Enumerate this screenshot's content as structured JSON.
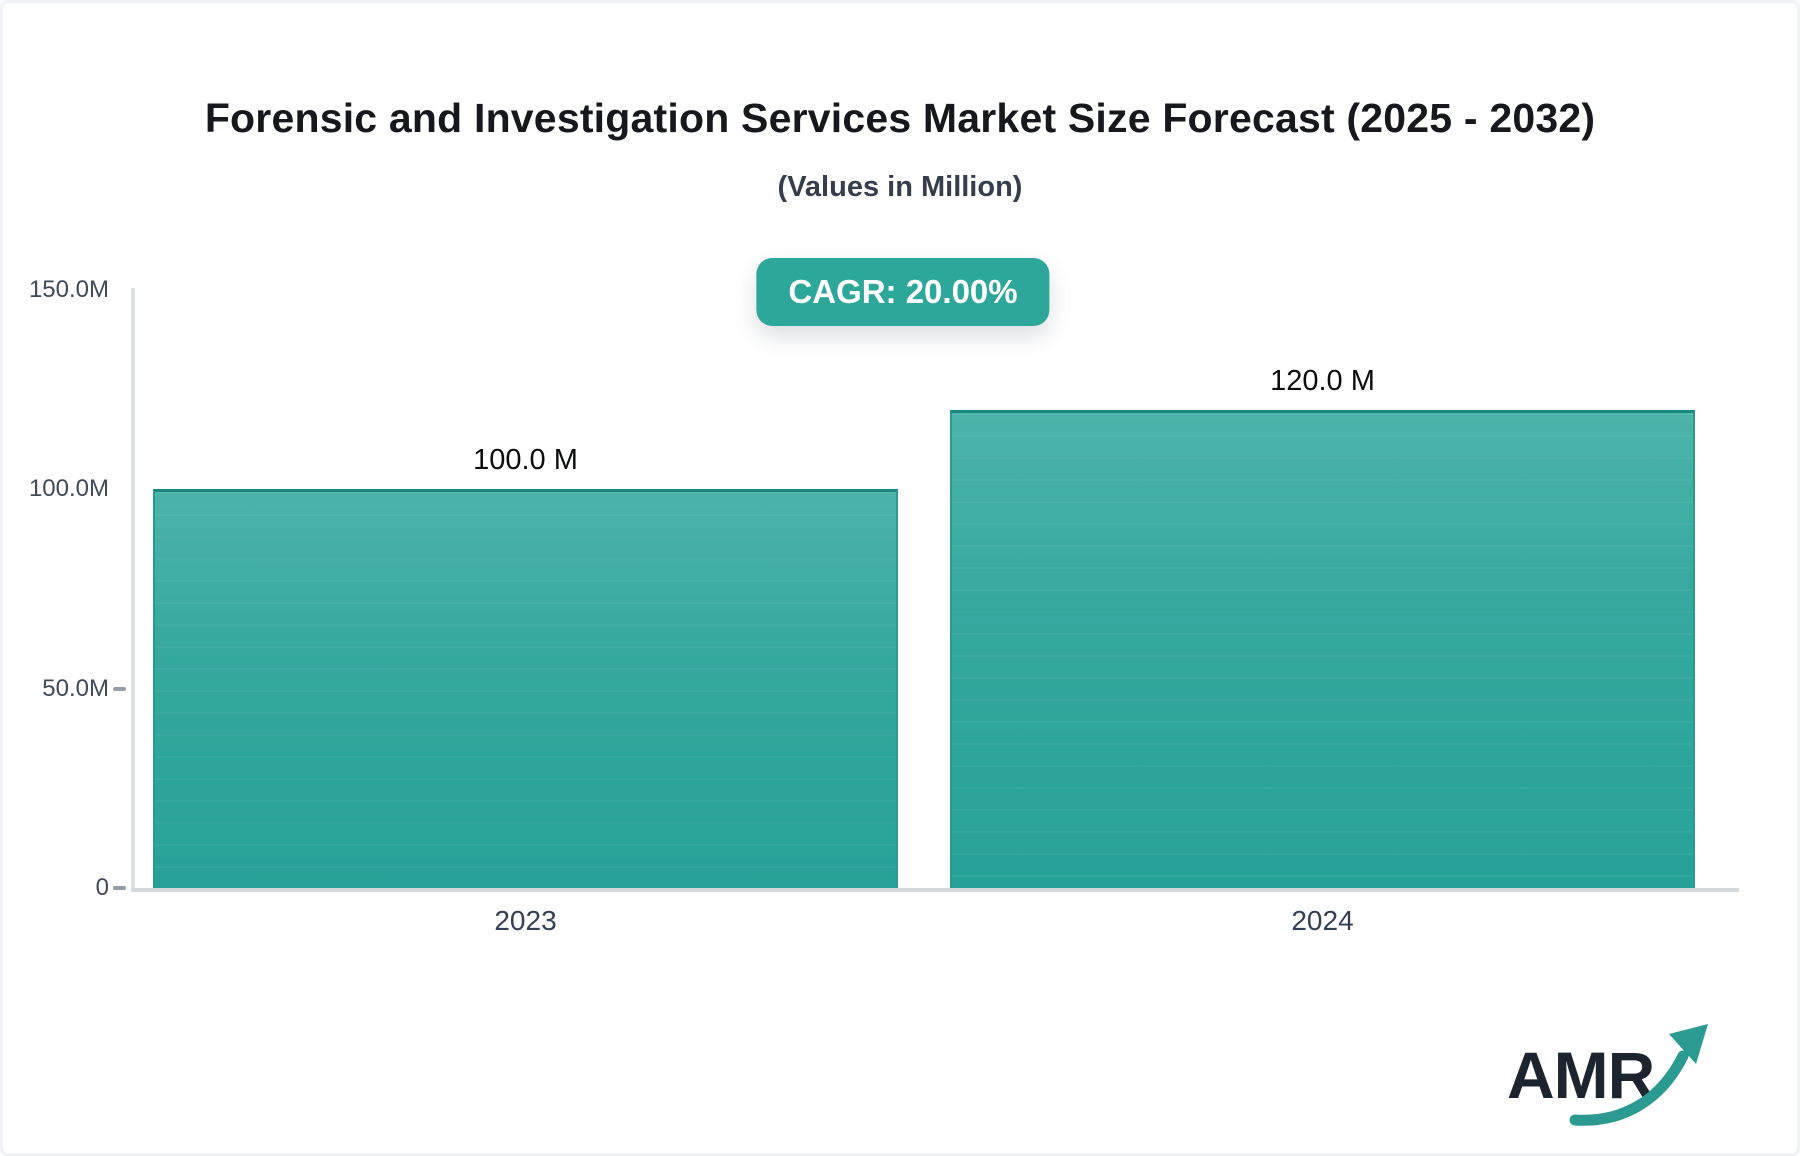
{
  "header": {
    "title": "Forensic and Investigation Services Market Size Forecast (2025 - 2032)",
    "subtitle": "(Values in Million)",
    "cagr_badge": "CAGR: 20.00%"
  },
  "chart_data": {
    "type": "bar",
    "title": "Forensic and Investigation Services Market Size Forecast (2025 - 2032)",
    "subtitle": "(Values in Million)",
    "categories": [
      "2023",
      "2024"
    ],
    "values": [
      100.0,
      120.0
    ],
    "value_labels": [
      "100.0 M",
      "120.0 M"
    ],
    "xlabel": "",
    "ylabel": "",
    "ylim": [
      0,
      150
    ],
    "yticks": [
      {
        "label": "150.0M",
        "value": 150,
        "tick": false
      },
      {
        "label": "100.0M",
        "value": 100,
        "tick": false
      },
      {
        "label": "50.0M",
        "value": 50,
        "tick": true
      },
      {
        "label": "0",
        "value": 0,
        "tick": true
      }
    ],
    "grid": false,
    "legend": false,
    "annotation": "CAGR: 20.00%",
    "colors": {
      "bar_top": "#4cb3a9",
      "bar_bottom": "#27a197",
      "bar_edge": "#1a887f",
      "axis_line": "#d6d9de",
      "tick_label": "#3e4959",
      "value_label": "#0c0d10",
      "badge_background": "#2ca79a",
      "badge_text": "#ffffff"
    }
  },
  "logo": {
    "text": "AMR",
    "text_color": "#1c2430",
    "accent_color": "#2b9a90",
    "icon": "trend-up-arrow-icon"
  }
}
